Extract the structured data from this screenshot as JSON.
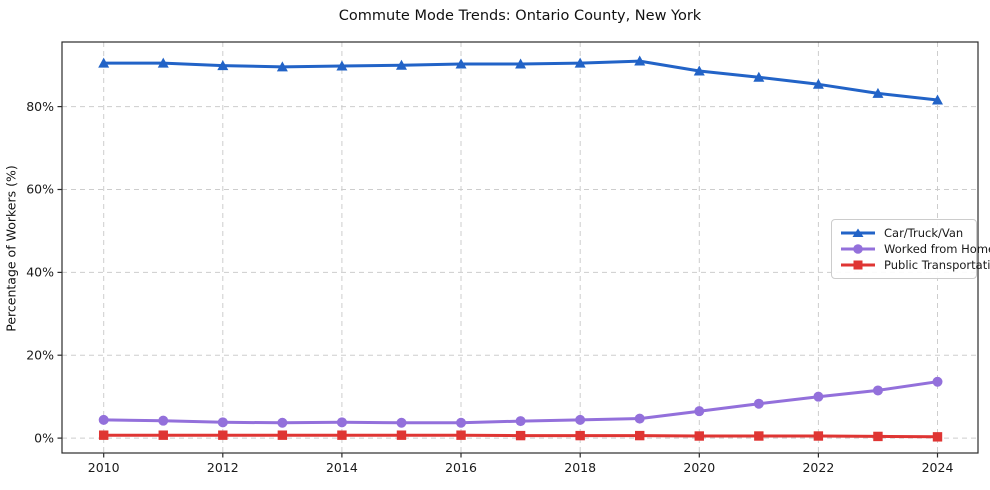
{
  "figure": {
    "title": "Commute Mode Trends: Ontario County, New York"
  },
  "chart_data": {
    "type": "line",
    "title": "Commute Mode Trends: Ontario County, New York",
    "xlabel": "",
    "ylabel": "Percentage of Workers (%)",
    "x": [
      2010,
      2011,
      2012,
      2013,
      2014,
      2015,
      2016,
      2017,
      2018,
      2019,
      2020,
      2021,
      2022,
      2023,
      2024
    ],
    "series": [
      {
        "name": "Car/Truck/Van",
        "color": "#2263c7",
        "marker": "triangle",
        "values": [
          90.5,
          90.5,
          89.9,
          89.6,
          89.8,
          90.0,
          90.3,
          90.3,
          90.5,
          91.0,
          88.6,
          87.1,
          85.4,
          83.2,
          81.6
        ]
      },
      {
        "name": "Worked from Home",
        "color": "#9370db",
        "marker": "circle",
        "values": [
          4.4,
          4.2,
          3.8,
          3.7,
          3.8,
          3.7,
          3.7,
          4.1,
          4.4,
          4.7,
          6.5,
          8.3,
          10.0,
          11.5,
          13.6
        ]
      },
      {
        "name": "Public Transportation",
        "color": "#df3533",
        "marker": "square",
        "values": [
          0.7,
          0.7,
          0.7,
          0.7,
          0.7,
          0.7,
          0.7,
          0.6,
          0.6,
          0.6,
          0.5,
          0.5,
          0.5,
          0.4,
          0.3
        ]
      }
    ],
    "x_ticks": [
      2010,
      2012,
      2014,
      2016,
      2018,
      2020,
      2022,
      2024
    ],
    "y_ticks": [
      0,
      20,
      40,
      60,
      80
    ],
    "y_tick_suffix": "%",
    "xlim": [
      2009.3,
      2024.68
    ],
    "ylim": [
      -3.6,
      95.6
    ],
    "grid": true,
    "grid_style": "dashed",
    "legend_position": "center-right",
    "legend_labels": [
      "Car/Truck/Van",
      "Worked from Home",
      "Public Transportation"
    ]
  }
}
